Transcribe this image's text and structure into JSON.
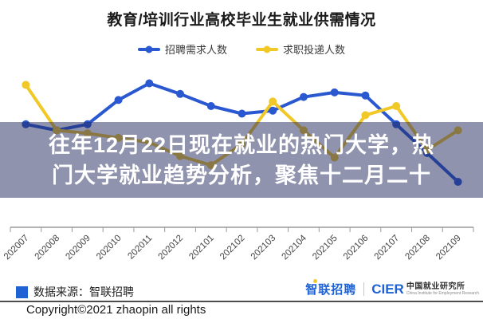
{
  "title": "教育/培训行业高校毕业生就业供需情况",
  "overlay": {
    "line1": "往年12月22日现在就业的热门大学，热",
    "line2": "门大学就业趋势分析，聚焦十二月二十",
    "bg": "rgba(33,39,93,0.5)",
    "text_color": "#ffffff"
  },
  "chart_data": {
    "type": "line",
    "title": "教育/培训行业高校毕业生就业供需情况",
    "categories": [
      "202007",
      "202008",
      "202009",
      "202010",
      "202011",
      "202012",
      "202101",
      "202102",
      "202103",
      "202104",
      "202105",
      "202106",
      "202107",
      "202108",
      "202109"
    ],
    "series": [
      {
        "name": "招聘需求人数",
        "color": "#2a58d0",
        "values": [
          68,
          64,
          68,
          84,
          95,
          88,
          80,
          75,
          77,
          86,
          89,
          87,
          68,
          49,
          30
        ]
      },
      {
        "name": "求职投递人数",
        "color": "#f0c929",
        "values": [
          94,
          64,
          62,
          59,
          56,
          47,
          41,
          55,
          83,
          64,
          46,
          74,
          80,
          51,
          64
        ]
      }
    ],
    "ylim": [
      0,
      100
    ],
    "xlabel": "",
    "ylabel": "",
    "grid": false,
    "legend_position": "top",
    "x_label_rotation": 45
  },
  "footer": {
    "source_label": "数据来源：智联招聘",
    "source_marker_color": "#1f62d4",
    "zhaopin_logo": "智联招聘",
    "zhaopin_logo_color": "#1f62d4",
    "zhaopin_accent_color": "#f0c929",
    "cier_logo": "CIER",
    "cier_logo_color": "#1f62d4",
    "cier_cn": "中国就业研究所",
    "cier_en": "China Institute for Employment Research",
    "copyright": "Copyright©2021 zhaopin all rights"
  }
}
